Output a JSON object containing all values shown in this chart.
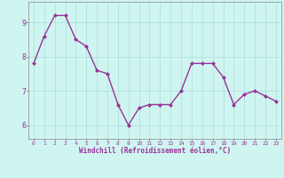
{
  "x": [
    0,
    1,
    2,
    3,
    4,
    5,
    6,
    7,
    8,
    9,
    10,
    11,
    12,
    13,
    14,
    15,
    16,
    17,
    18,
    19,
    20,
    21,
    22,
    23
  ],
  "y": [
    7.8,
    8.6,
    9.2,
    9.2,
    8.5,
    8.3,
    7.6,
    7.5,
    6.6,
    6.0,
    6.5,
    6.6,
    6.6,
    6.6,
    7.0,
    7.8,
    7.8,
    7.8,
    7.4,
    6.6,
    6.9,
    7.0,
    6.85,
    6.7
  ],
  "line_color": "#993399",
  "marker": "D",
  "marker_size": 2.0,
  "bg_color": "#cff5f0",
  "grid_color": "#aadddd",
  "xlabel": "Windchill (Refroidissement éolien,°C)",
  "xlabel_color": "#993399",
  "tick_color": "#993399",
  "tick_label_color": "#993399",
  "spine_color": "#888888",
  "ylim": [
    5.6,
    9.6
  ],
  "xlim": [
    -0.5,
    23.5
  ],
  "yticks": [
    6,
    7,
    8,
    9
  ],
  "xticks": [
    0,
    1,
    2,
    3,
    4,
    5,
    6,
    7,
    8,
    9,
    10,
    11,
    12,
    13,
    14,
    15,
    16,
    17,
    18,
    19,
    20,
    21,
    22,
    23
  ],
  "linewidth": 1.0,
  "figsize": [
    3.2,
    2.0
  ],
  "dpi": 100
}
